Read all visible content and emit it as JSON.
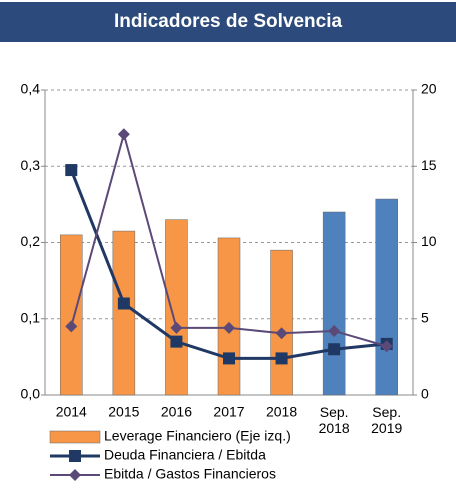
{
  "chart_data": {
    "type": "bar-line",
    "title": "Indicadores de Solvencia",
    "categories": [
      "2014",
      "2015",
      "2016",
      "2017",
      "2018",
      "Sep. 2018",
      "Sep. 2019"
    ],
    "series": [
      {
        "name": "Leverage Financiero (Eje izq.)",
        "type": "bar",
        "axis": "y",
        "color": "#f79646",
        "colors": [
          "#f79646",
          "#f79646",
          "#f79646",
          "#f79646",
          "#f79646",
          "#4f81bd",
          "#4f81bd"
        ],
        "values": [
          0.21,
          0.215,
          0.23,
          0.206,
          0.19,
          0.24,
          0.257
        ]
      },
      {
        "name": "Deuda Financiera / Ebitda",
        "type": "line",
        "axis": "y2",
        "color": "#1f3864",
        "marker": "square",
        "values": [
          14.75,
          6.0,
          3.5,
          2.4,
          2.4,
          3.0,
          3.35
        ]
      },
      {
        "name": "Ebitda / Gastos Financieros",
        "type": "line",
        "axis": "y2",
        "color": "#5b4a78",
        "marker": "diamond",
        "values": [
          4.5,
          17.1,
          4.4,
          4.4,
          4.05,
          4.2,
          3.2
        ]
      }
    ],
    "ylim": [
      0,
      0.4
    ],
    "yticks": [
      {
        "value": 0,
        "label": "0,0"
      },
      {
        "value": 0.1,
        "label": "0,1"
      },
      {
        "value": 0.2,
        "label": "0,2"
      },
      {
        "value": 0.3,
        "label": "0,3"
      },
      {
        "value": 0.4,
        "label": "0,4"
      }
    ],
    "y2lim": [
      0,
      20
    ],
    "y2ticks": [
      0,
      5,
      10,
      15,
      20
    ],
    "grid": true
  }
}
